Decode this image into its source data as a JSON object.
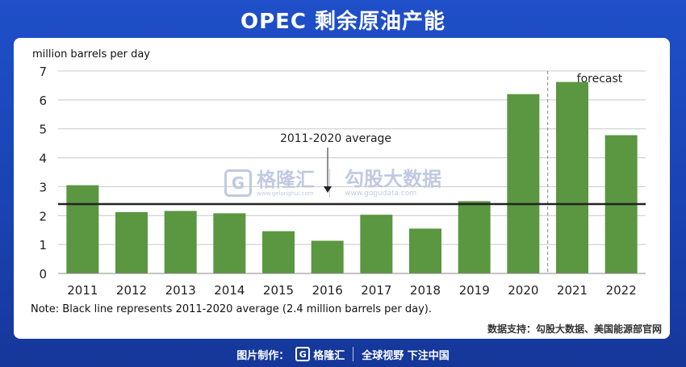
{
  "header": {
    "title": "OPEC 剩余原油产能"
  },
  "chart_data": {
    "type": "bar",
    "ylabel": "million barrels per day",
    "categories": [
      "2011",
      "2012",
      "2013",
      "2014",
      "2015",
      "2016",
      "2017",
      "2018",
      "2019",
      "2020",
      "2021",
      "2022"
    ],
    "values": [
      3.05,
      2.12,
      2.16,
      2.08,
      1.46,
      1.13,
      2.03,
      1.55,
      2.5,
      6.2,
      6.62,
      4.78
    ],
    "ylim": [
      0,
      7
    ],
    "yticks": [
      "0",
      "1",
      "2",
      "3",
      "4",
      "5",
      "6",
      "7"
    ],
    "bar_color": "#5b9641",
    "grid": "horizontal",
    "reference_line": {
      "value": 2.4,
      "label": "2011-2020 average",
      "color": "#222222"
    },
    "forecast": {
      "label": "forecast",
      "start_index": 10
    }
  },
  "note": "Note: Black line represents 2011-2020 average (2.4 million barrels per day).",
  "source": "数据支持：勾股大数据、美国能源部官网",
  "watermark": {
    "name": "格隆汇",
    "url": "www.gelonghui.com",
    "name2": "勾股大数据",
    "url2": "www.gogudata.com"
  },
  "footer": {
    "prefix": "图片制作：",
    "logo_glyph": "G",
    "logo_text": "格隆汇",
    "slogan": "全球视野 下注中国"
  }
}
